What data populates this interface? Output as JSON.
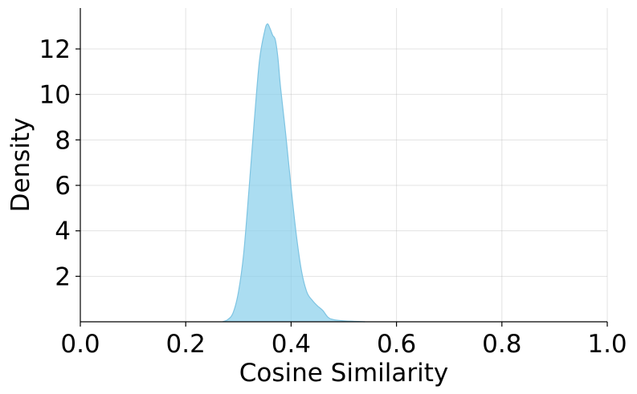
{
  "chart_data": {
    "type": "area",
    "title": "",
    "xlabel": "Cosine Similarity",
    "ylabel": "Density",
    "xlim": [
      0.0,
      1.0
    ],
    "ylim": [
      0.0,
      13.8
    ],
    "x_ticks": [
      0.0,
      0.2,
      0.4,
      0.6,
      0.8,
      1.0
    ],
    "x_tick_labels": [
      "0.0",
      "0.2",
      "0.4",
      "0.6",
      "0.8",
      "1.0"
    ],
    "y_ticks": [
      2,
      4,
      6,
      8,
      10,
      12
    ],
    "y_tick_labels": [
      "2",
      "4",
      "6",
      "8",
      "10",
      "12"
    ],
    "grid": true,
    "fill_color": "#87CEEB",
    "fill_opacity": 0.7,
    "line_color": "#7ec4e2",
    "series": [
      {
        "x": [
          0.27,
          0.28,
          0.29,
          0.3,
          0.31,
          0.32,
          0.33,
          0.34,
          0.35,
          0.355,
          0.36,
          0.365,
          0.37,
          0.375,
          0.38,
          0.39,
          0.4,
          0.41,
          0.42,
          0.43,
          0.44,
          0.45,
          0.46,
          0.47,
          0.48,
          0.5,
          0.52,
          0.54
        ],
        "y": [
          0.0,
          0.1,
          0.4,
          1.3,
          3.0,
          5.8,
          8.8,
          11.5,
          12.8,
          13.1,
          12.9,
          12.6,
          12.4,
          11.6,
          10.3,
          8.2,
          5.9,
          3.8,
          2.2,
          1.3,
          0.95,
          0.7,
          0.5,
          0.2,
          0.1,
          0.04,
          0.02,
          0.0
        ]
      }
    ]
  }
}
